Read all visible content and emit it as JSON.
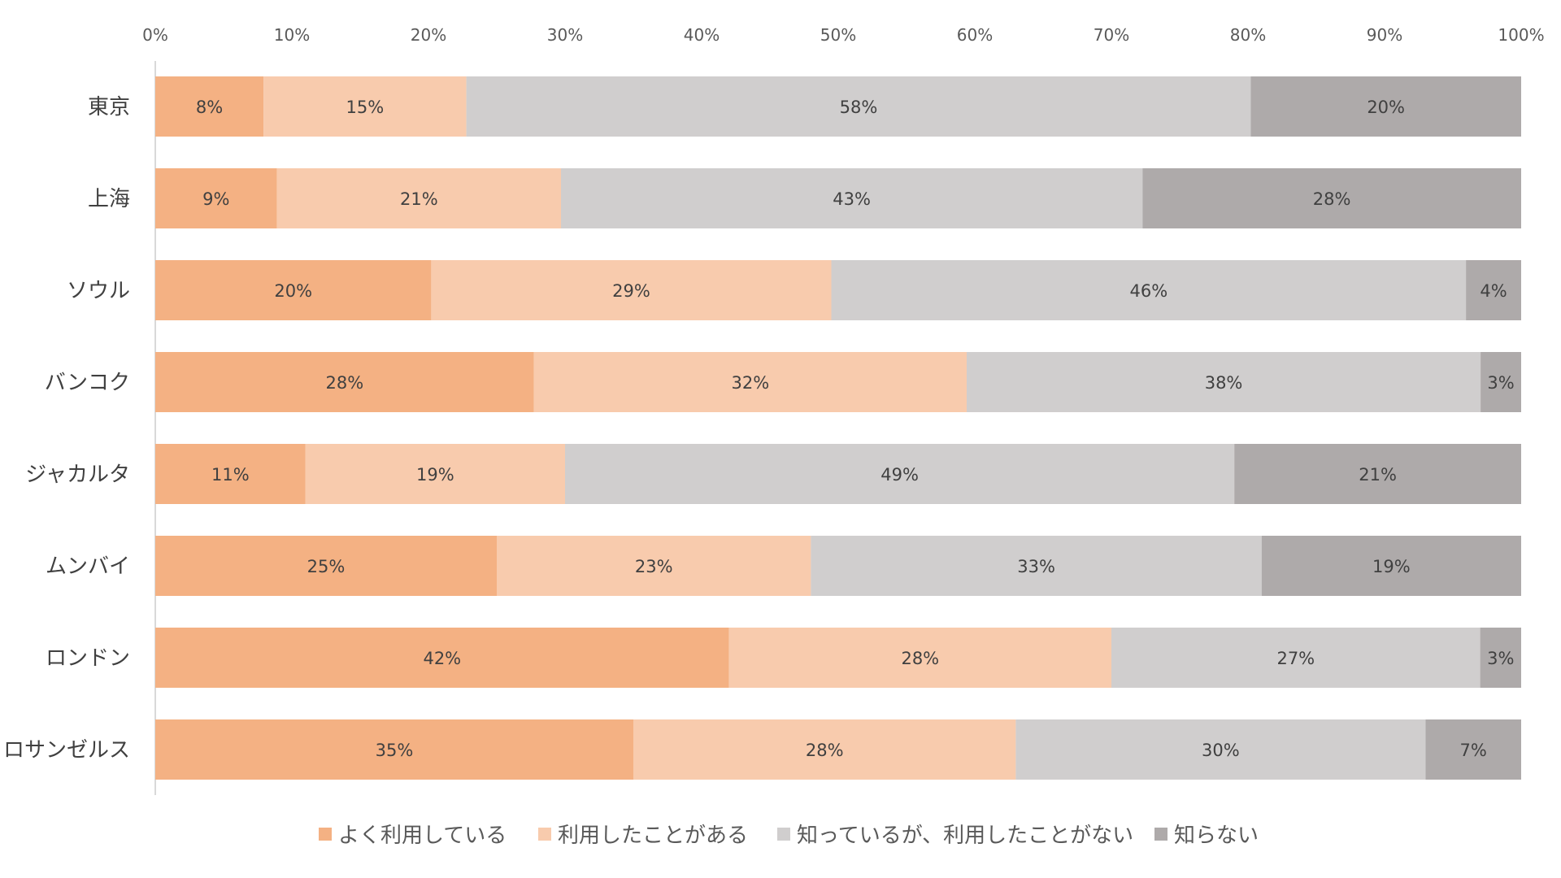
{
  "chart_data": {
    "type": "bar",
    "orientation": "horizontal",
    "stacked": "percent",
    "title": "",
    "xlabel": "",
    "ylabel": "",
    "xlim": [
      0,
      100
    ],
    "x_ticks": [
      "0%",
      "10%",
      "20%",
      "30%",
      "40%",
      "50%",
      "60%",
      "70%",
      "80%",
      "90%",
      "100%"
    ],
    "categories": [
      "東京",
      "上海",
      "ソウル",
      "バンコク",
      "ジャカルタ",
      "ムンバイ",
      "ロンドン",
      "ロサンゼルス"
    ],
    "series": [
      {
        "name": "よく利用している",
        "color": "#F4B183",
        "values": [
          8,
          9,
          20,
          28,
          11,
          25,
          42,
          35
        ]
      },
      {
        "name": "利用したことがある",
        "color": "#F8CBAD",
        "values": [
          15,
          21,
          29,
          32,
          19,
          23,
          28,
          28
        ]
      },
      {
        "name": "知っているが、利用したことがない",
        "color": "#D0CECE",
        "values": [
          58,
          43,
          46,
          38,
          49,
          33,
          27,
          30
        ]
      },
      {
        "name": "知らない",
        "color": "#AEAAAA",
        "values": [
          20,
          28,
          4,
          3,
          21,
          19,
          3,
          7
        ]
      }
    ],
    "value_suffix": "%",
    "legend_position": "bottom",
    "grid": false
  }
}
